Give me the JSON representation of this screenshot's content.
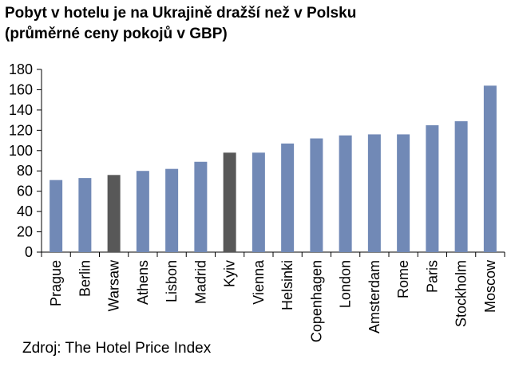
{
  "title_line1": "Pobyt v hotelu je na Ukrajině dražší než v Polsku",
  "title_line2": "(průměrné ceny pokojů v GBP)",
  "source": "Zdroj: The Hotel Price Index",
  "colors": {
    "default_bar": "#7189b6",
    "highlight_bar": "#585858",
    "axis": "#000000"
  },
  "chart_data": {
    "type": "bar",
    "title": "Pobyt v hotelu je na Ukrajině dražší než v Polsku",
    "subtitle": "(průměrné ceny pokojů v GBP)",
    "categories": [
      "Prague",
      "Berlin",
      "Warsaw",
      "Athens",
      "Lisbon",
      "Madrid",
      "Kyiv",
      "Vienna",
      "Helsinki",
      "Copenhagen",
      "London",
      "Amsterdam",
      "Rome",
      "Paris",
      "Stockholm",
      "Moscow"
    ],
    "values": [
      71,
      73,
      76,
      80,
      82,
      89,
      98,
      98,
      107,
      112,
      115,
      116,
      116,
      125,
      129,
      164
    ],
    "highlighted": [
      "Warsaw",
      "Kyiv"
    ],
    "ylim": [
      0,
      180
    ],
    "yticks": [
      0,
      20,
      40,
      60,
      80,
      100,
      120,
      140,
      160,
      180
    ],
    "xlabel": "",
    "ylabel": "",
    "grid": false,
    "legend": "none"
  }
}
